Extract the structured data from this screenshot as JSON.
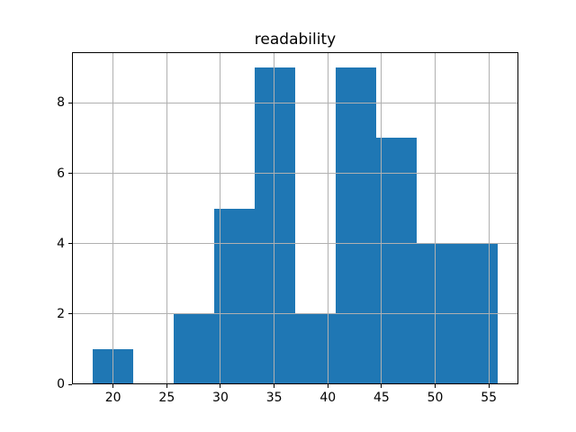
{
  "figure": {
    "background": "#ffffff"
  },
  "chart_data": {
    "type": "histogram",
    "title": "readability",
    "xlabel": "",
    "ylabel": "",
    "bin_edges": [
      18.06,
      21.84,
      25.62,
      29.4,
      33.18,
      36.96,
      40.74,
      44.52,
      48.3,
      52.08,
      55.86
    ],
    "counts": [
      1,
      0,
      2,
      5,
      9,
      2,
      9,
      7,
      4,
      4
    ],
    "xticks": [
      20,
      25,
      30,
      35,
      40,
      45,
      50,
      55
    ],
    "yticks": [
      0,
      2,
      4,
      6,
      8
    ],
    "xlim": [
      16.17,
      57.75
    ],
    "ylim": [
      0,
      9.45
    ],
    "grid": true,
    "grid_over_bars": true,
    "legend": "none",
    "bar_color": "#1f77b4",
    "grid_color": "#b0b0b0",
    "axis_color": "#000000",
    "tick_label_color": "#000000",
    "title_color": "#000000"
  }
}
